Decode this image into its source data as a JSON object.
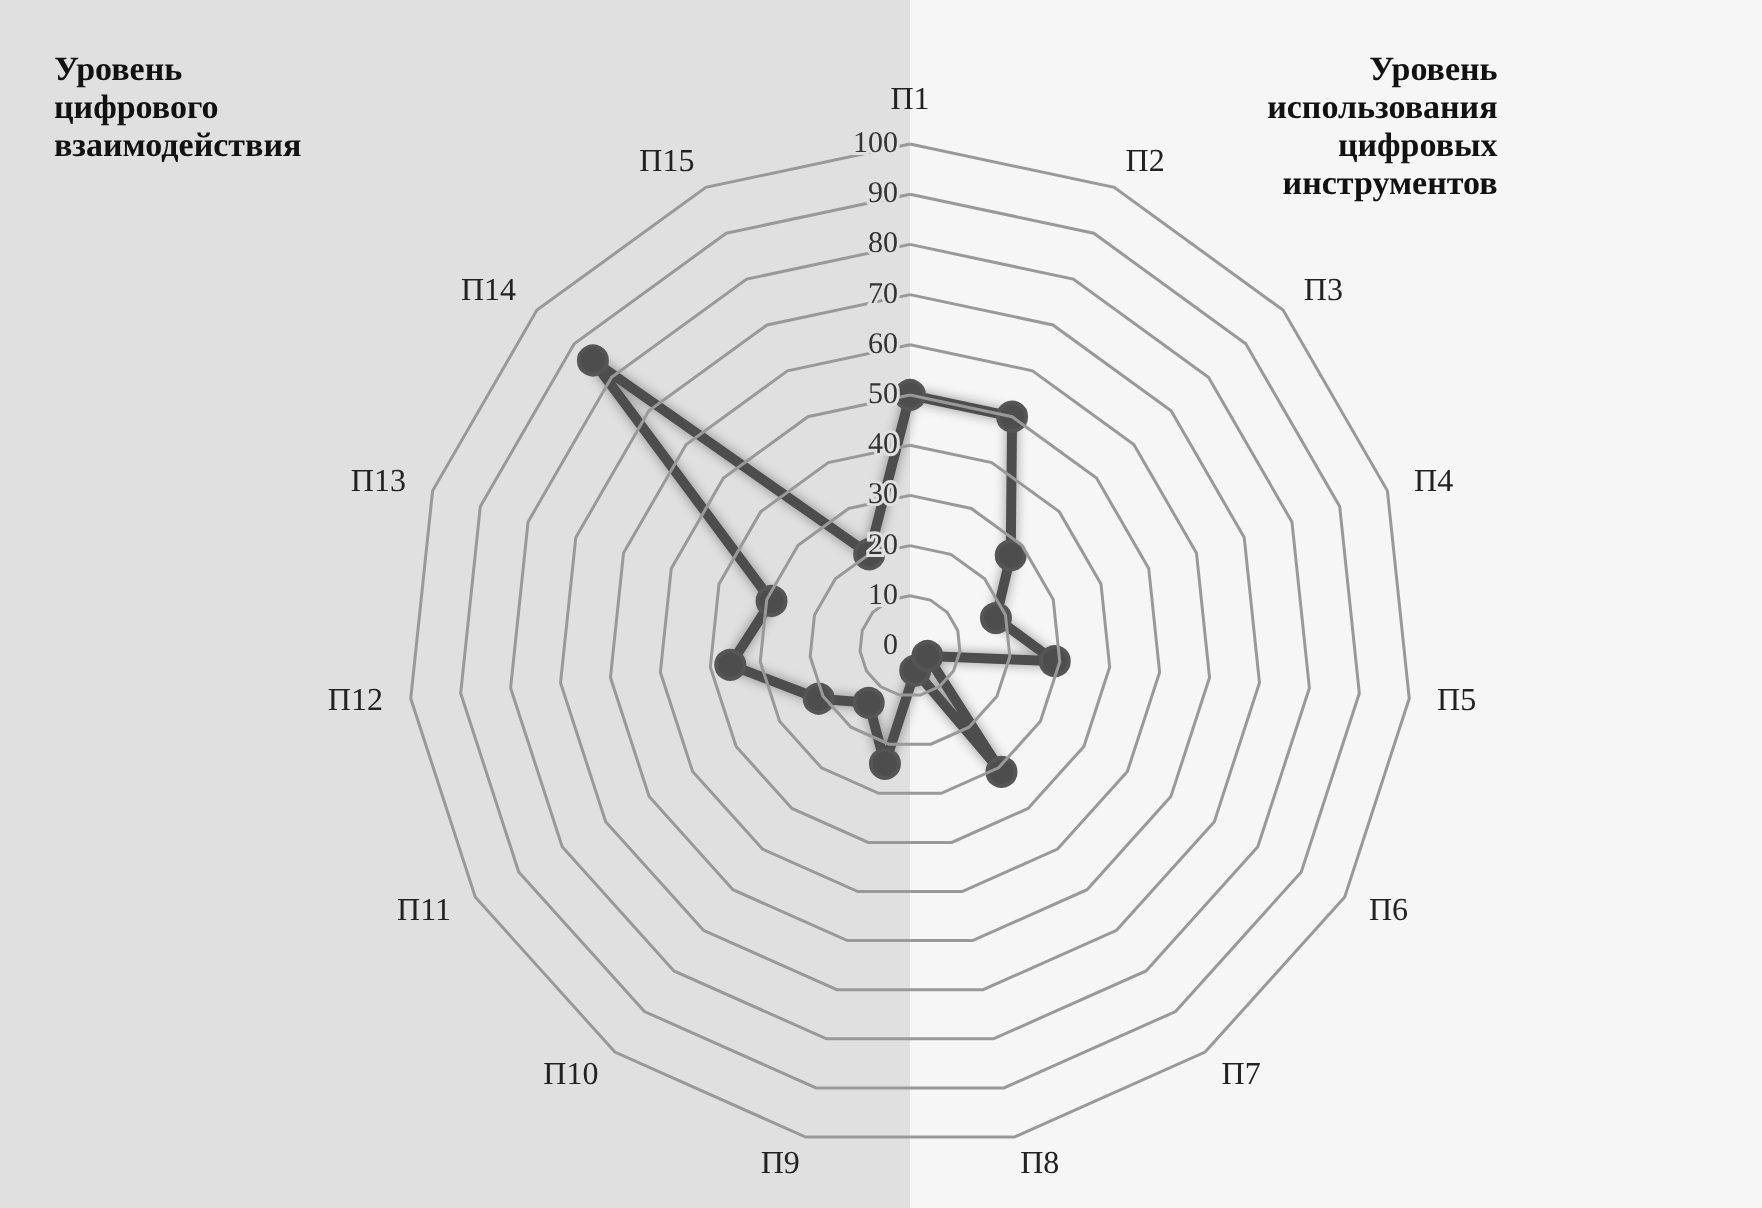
{
  "chart_data": {
    "type": "radar",
    "categories": [
      "П1",
      "П2",
      "П3",
      "П4",
      "П5",
      "П6",
      "П7",
      "П8",
      "П9",
      "П10",
      "П11",
      "П12",
      "П13",
      "П14",
      "П15"
    ],
    "series": [
      {
        "color": "#4d4d4d",
        "values": [
          50,
          50,
          27,
          18,
          29,
          4,
          31,
          5,
          24,
          14,
          21,
          36,
          29,
          85,
          20
        ]
      }
    ],
    "ylim": [
      0,
      100
    ],
    "yticks": [
      0,
      10,
      20,
      30,
      40,
      50,
      60,
      70,
      80,
      90,
      100
    ],
    "grid": true,
    "marker": "circle",
    "line_style": "solid",
    "annotations": [
      "Уровень\nцифрового\nвзаимодействия",
      "Уровень\nиспользования\nцифровых\nинструментов"
    ]
  }
}
